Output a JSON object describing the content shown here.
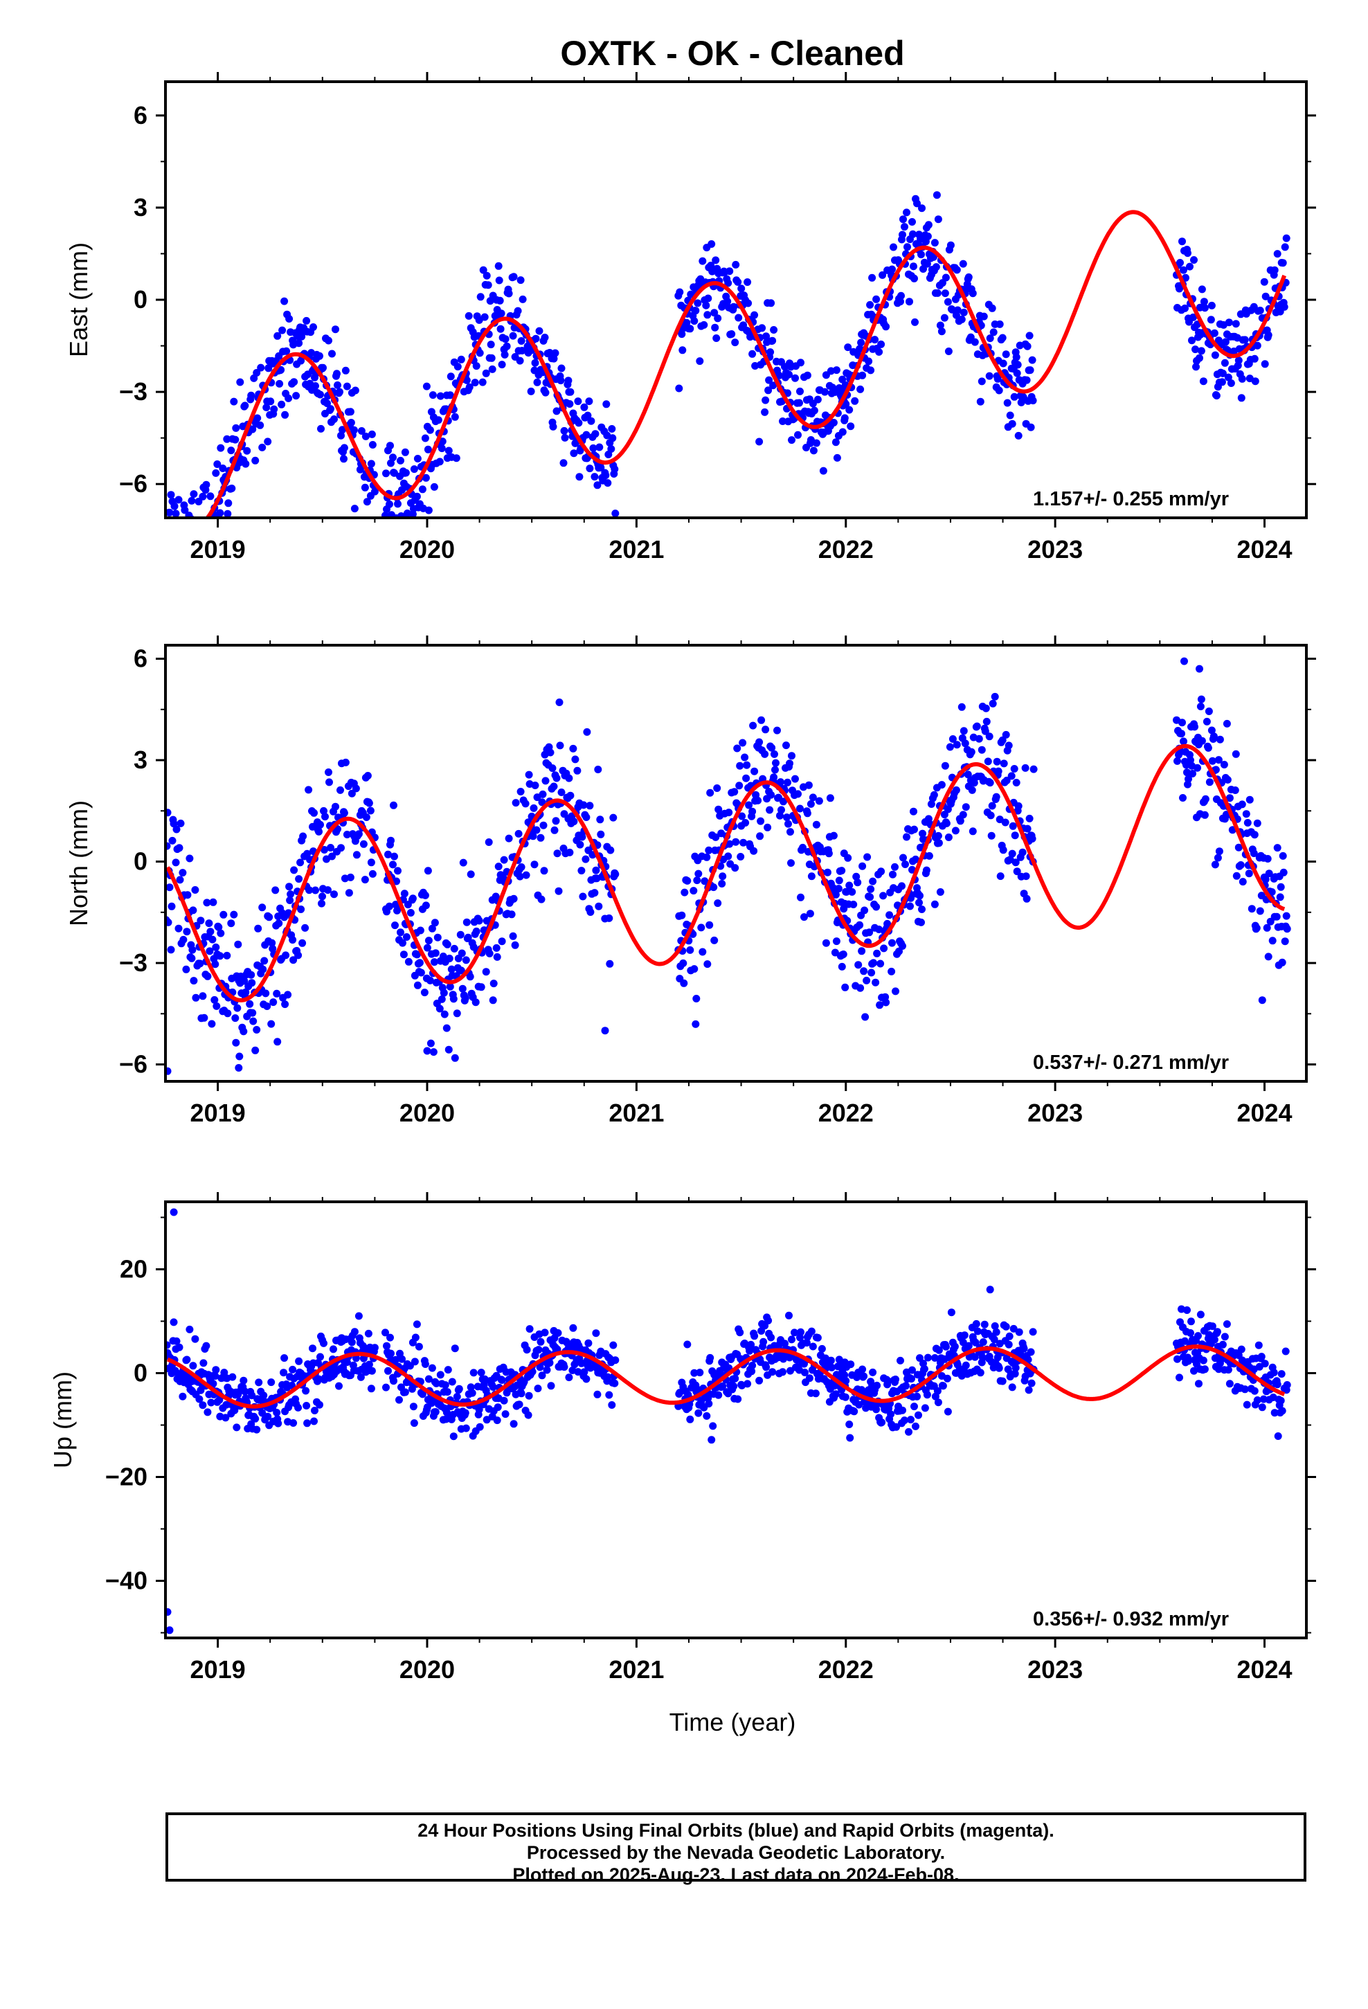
{
  "chart_data": {
    "title": "OXTK  - OK - Cleaned",
    "type": "scatter",
    "x_tick_labels": [
      "2019",
      "2020",
      "2021",
      "2022",
      "2023",
      "2024"
    ],
    "xlim": [
      2018.75,
      2024.2
    ],
    "xlabel": "Time (year)",
    "colors": {
      "points": "#0000ff",
      "fit": "#ff0000",
      "frame": "#000000"
    },
    "panels": [
      {
        "ylabel": "East (mm)",
        "ylim": [
          -7.1,
          7.1
        ],
        "y_ticks": [
          -6,
          -3,
          0,
          3,
          6
        ],
        "y_tick_labels": [
          "−6",
          "−3",
          "0",
          "3",
          "6"
        ],
        "rate_label": "1.157+/- 0.255 mm/yr",
        "model": {
          "offset": -2.51,
          "rate": 1.157,
          "sin": 2.0,
          "cos": -1.7,
          "t0": 2021.0
        },
        "noise": 0.8,
        "outliers": []
      },
      {
        "ylabel": "North (mm)",
        "ylim": [
          -6.5,
          6.4
        ],
        "y_ticks": [
          -6,
          -3,
          0,
          3,
          6
        ],
        "y_tick_labels": [
          "−6",
          "−3",
          "0",
          "3",
          "6"
        ],
        "rate_label": "0.537+/- 0.271 mm/yr",
        "model": {
          "offset": -0.54,
          "rate": 0.537,
          "sin": -1.7,
          "cos": -1.9,
          "t0": 2021.0
        },
        "noise": 1.0,
        "outliers": [
          [
            2018.76,
            -6.2
          ],
          [
            2019.1,
            -6.1
          ],
          [
            2020.0,
            -5.6
          ],
          [
            2020.85,
            -5.0
          ]
        ]
      },
      {
        "ylabel": "Up (mm)",
        "ylim": [
          -51,
          33
        ],
        "y_ticks": [
          -40,
          -20,
          0,
          20
        ],
        "y_tick_labels": [
          "−40",
          "−20",
          "0",
          "20"
        ],
        "rate_label": "0.356+/- 0.932 mm/yr",
        "model": {
          "offset": -0.8,
          "rate": 0.356,
          "sin": -4.4,
          "cos": -2.3,
          "t0": 2021.0
        },
        "noise": 3.0,
        "outliers": [
          [
            2018.79,
            31
          ],
          [
            2018.76,
            -46
          ],
          [
            2018.77,
            -49.5
          ]
        ]
      }
    ],
    "data_segments": [
      [
        2018.75,
        2019.75
      ],
      [
        2019.8,
        2020.9
      ],
      [
        2021.2,
        2022.0
      ],
      [
        2021.98,
        2022.9
      ],
      [
        2023.58,
        2024.11
      ]
    ]
  },
  "footer": {
    "line1": "24 Hour Positions Using Final Orbits (blue) and Rapid Orbits (magenta).",
    "line2": "Processed by the Nevada Geodetic Laboratory.",
    "line3": "Plotted on 2025-Aug-23. Last data on 2024-Feb-08."
  }
}
